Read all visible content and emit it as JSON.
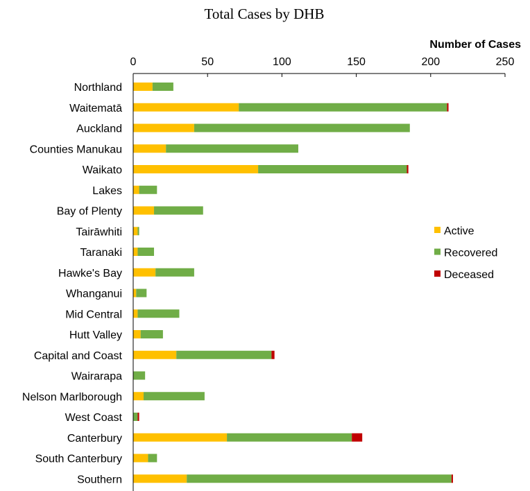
{
  "chart_data": {
    "type": "bar",
    "orientation": "horizontal",
    "stacked": true,
    "title": "Total Cases by DHB",
    "xlabel": "Number of Cases",
    "ylabel": "",
    "xlim": [
      0,
      250
    ],
    "xticks": [
      0,
      50,
      100,
      150,
      200,
      250
    ],
    "x_axis_position": "top",
    "legend_position": "right",
    "grid": false,
    "categories": [
      "Northland",
      "Waitematā",
      "Auckland",
      "Counties Manukau",
      "Waikato",
      "Lakes",
      "Bay of Plenty",
      "Tairāwhiti",
      "Taranaki",
      "Hawke's Bay",
      "Whanganui",
      "Mid Central",
      "Hutt Valley",
      "Capital and Coast",
      "Wairarapa",
      "Nelson Marlborough",
      "West Coast",
      "Canterbury",
      "South Canterbury",
      "Southern"
    ],
    "series": [
      {
        "name": "Active",
        "color": "#ffc000",
        "values": [
          13,
          71,
          41,
          22,
          84,
          4,
          14,
          3,
          3,
          15,
          2,
          3,
          5,
          29,
          0,
          7,
          0,
          63,
          10,
          36
        ]
      },
      {
        "name": "Recovered",
        "color": "#70ad47",
        "values": [
          14,
          140,
          145,
          89,
          100,
          12,
          33,
          1,
          11,
          26,
          7,
          28,
          15,
          64,
          8,
          41,
          3,
          84,
          6,
          178
        ]
      },
      {
        "name": "Deceased",
        "color": "#c00000",
        "values": [
          0,
          1,
          0,
          0,
          1,
          0,
          0,
          0,
          0,
          0,
          0,
          0,
          0,
          2,
          0,
          0,
          1,
          7,
          0,
          1
        ]
      }
    ]
  }
}
